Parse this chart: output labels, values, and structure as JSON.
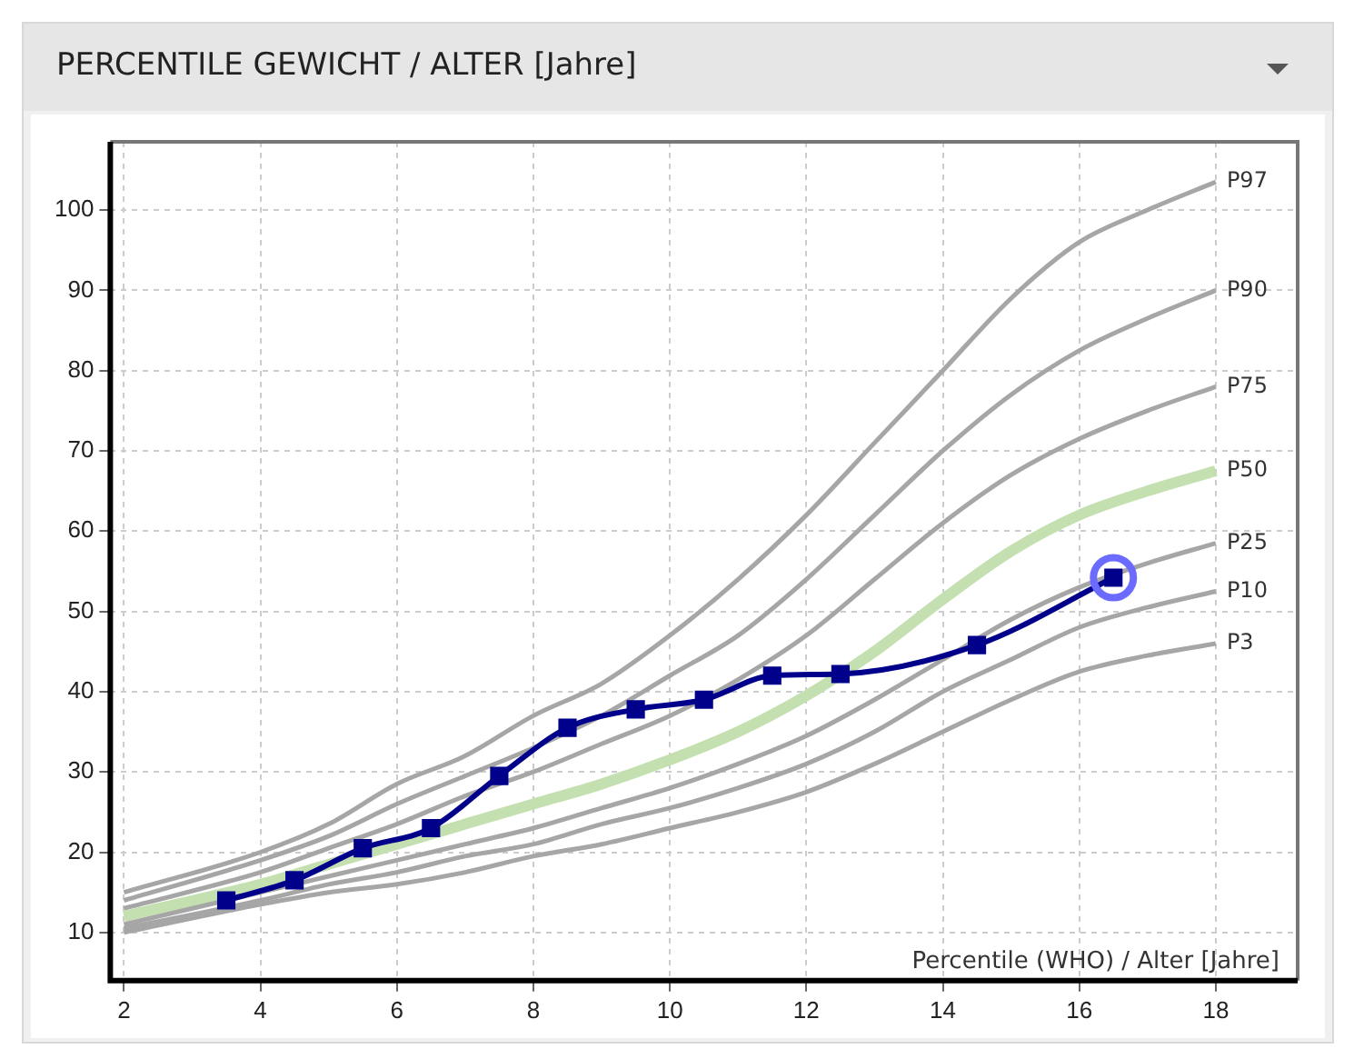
{
  "chart_data": {
    "type": "line",
    "title": "PERCENTILE GEWICHT / ALTER [Jahre]",
    "xlabel": "Percentile (WHO) / Alter [Jahre]",
    "x": [
      2,
      4,
      5,
      6,
      7,
      8,
      9,
      10,
      11,
      12,
      13,
      14,
      15,
      16,
      17,
      18
    ],
    "series": [
      {
        "name": "P97",
        "color": "#a6a6a6",
        "values": [
          15,
          20,
          23.5,
          28.5,
          32,
          37,
          41,
          47,
          54,
          62,
          71,
          80,
          89,
          96,
          100,
          103.5
        ]
      },
      {
        "name": "P90",
        "color": "#a6a6a6",
        "values": [
          14,
          19,
          22,
          26,
          29.5,
          33,
          37,
          42,
          47,
          54,
          62,
          70,
          77,
          82.5,
          86.5,
          90
        ]
      },
      {
        "name": "P75",
        "color": "#a6a6a6",
        "values": [
          13,
          17.5,
          20.5,
          23.5,
          27,
          30,
          33.5,
          37,
          41.5,
          47,
          54,
          61,
          67,
          71.5,
          75,
          78
        ]
      },
      {
        "name": "P50",
        "color": "#c5e0b0",
        "values": [
          12,
          16,
          18.5,
          21,
          23.5,
          26,
          28.5,
          31.5,
          35,
          39.5,
          45,
          51.5,
          57.5,
          62,
          65,
          67.5
        ]
      },
      {
        "name": "P25",
        "color": "#a6a6a6",
        "values": [
          11,
          15,
          17,
          19,
          21,
          23,
          25.5,
          28,
          31,
          34.5,
          39,
          44,
          49,
          53,
          56,
          58.5
        ]
      },
      {
        "name": "P10",
        "color": "#a6a6a6",
        "values": [
          10.5,
          14,
          16,
          17.5,
          19.5,
          21,
          23.5,
          25.5,
          28,
          31,
          35,
          40,
          44,
          48,
          50.5,
          52.5
        ]
      },
      {
        "name": "P3",
        "color": "#a6a6a6",
        "values": [
          10,
          13.5,
          15,
          16,
          17.5,
          19.5,
          21,
          23,
          25,
          27.5,
          31,
          35,
          39,
          42.5,
          44.5,
          46
        ]
      },
      {
        "color": "#00008b",
        "marker": "square",
        "x": [
          3.5,
          4.5,
          5.5,
          6.5,
          7.5,
          8.5,
          9.5,
          10.5,
          11.5,
          12.5,
          14.5,
          16.5
        ],
        "values": [
          14,
          16.5,
          20.5,
          23,
          29.5,
          35.5,
          37.8,
          39,
          42,
          42.2,
          45.8,
          54.2
        ]
      },
      {
        "type": "scatter",
        "color": "#6b6bff",
        "marker": "circle",
        "x": [
          16.5
        ],
        "values": [
          54.2
        ]
      }
    ],
    "xlim": [
      1.8,
      19.2
    ],
    "xticks": [
      2,
      4,
      6,
      8,
      10,
      12,
      14,
      16,
      18
    ],
    "ylim": [
      4,
      108.5
    ],
    "yticks": [
      10,
      20,
      30,
      40,
      50,
      60,
      70,
      80,
      90,
      100
    ],
    "grid": true,
    "legend": false,
    "marker": "none",
    "line_style": "solid"
  }
}
